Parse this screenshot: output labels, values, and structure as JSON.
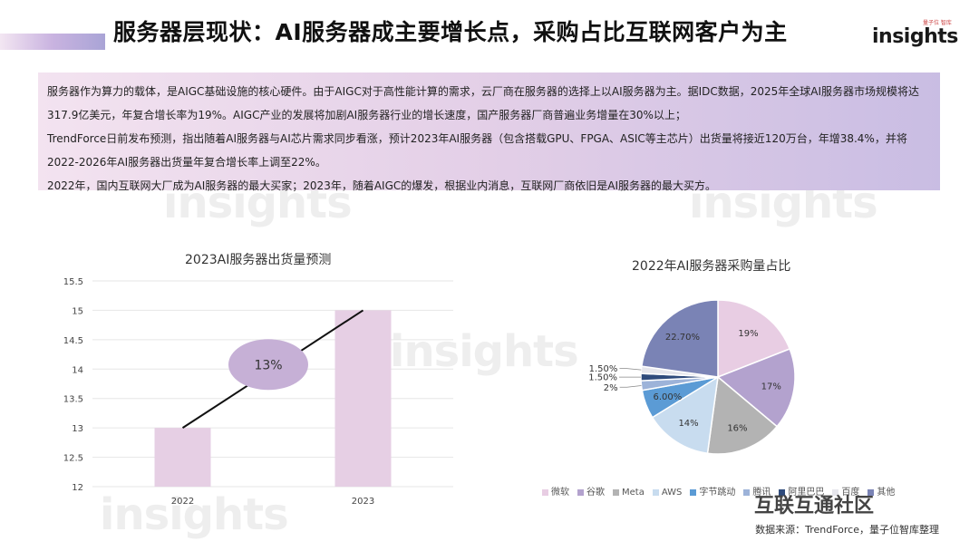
{
  "header": {
    "title": "服务器层现状：AI服务器成主要增长点，采购占比互联网客户为主",
    "brand_small": "量子位 智库",
    "brand_main": "insights"
  },
  "summary": {
    "paragraphs": [
      "服务器作为算力的载体，是AIGC基础设施的核心硬件。由于AIGC对于高性能计算的需求，云厂商在服务器的选择上以AI服务器为主。据IDC数据，2025年全球AI服务器市场规模将达317.9亿美元，年复合增长率为19%。AIGC产业的发展将加剧AI服务器行业的增长速度，国产服务器厂商普遍业务增量在30%以上；",
      "TrendForce日前发布预测，指出随着AI服务器与AI芯片需求同步看涨，预计2023年AI服务器（包含搭载GPU、FPGA、ASIC等主芯片）出货量将接近120万台，年增38.4%，并将2022-2026年AI服务器出货量年复合增长率上调至22%。",
      "2022年，国内互联网大厂成为AI服务器的最大买家；2023年，随着AIGC的爆发，根据业内消息，互联网厂商依旧是AI服务器的最大买方。"
    ]
  },
  "chart_data": [
    {
      "type": "bar",
      "title": "2023AI服务器出货量预测",
      "categories": [
        "2022",
        "2023"
      ],
      "values": [
        13,
        15
      ],
      "ylim": [
        12,
        15.5
      ],
      "yticks": [
        "12",
        "12.5",
        "13",
        "13.5",
        "14",
        "14.5",
        "15",
        "15.5"
      ],
      "bar_color": "#e6cfe4",
      "annotation": "13%",
      "annotation_color": "#c6b0d6"
    },
    {
      "type": "pie",
      "title": "2022年AI服务器采购量占比",
      "slices": [
        {
          "name": "微软",
          "value": 19,
          "label": "19%",
          "color": "#e8cde3"
        },
        {
          "name": "谷歌",
          "value": 17,
          "label": "17%",
          "color": "#b3a2ce"
        },
        {
          "name": "Meta",
          "value": 16,
          "label": "16%",
          "color": "#b3b3b3"
        },
        {
          "name": "AWS",
          "value": 14,
          "label": "14%",
          "color": "#c8dcef"
        },
        {
          "name": "字节跳动",
          "value": 6,
          "label": "6.00%",
          "color": "#5b9bd5"
        },
        {
          "name": "腾讯",
          "value": 2,
          "label": "2%",
          "color": "#9db3d9"
        },
        {
          "name": "阿里巴巴",
          "value": 1.5,
          "label": "1.50%",
          "color": "#2f4b7c"
        },
        {
          "name": "百度",
          "value": 1.5,
          "label": "1.50%",
          "color": "#e6e6ec"
        },
        {
          "name": "其他",
          "value": 22.7,
          "label": "22.70%",
          "color": "#7a83b5"
        }
      ]
    }
  ],
  "footer": {
    "community": "互联互通社区",
    "source": "数据来源：TrendForce，量子位智库整理"
  },
  "watermark": "insights"
}
